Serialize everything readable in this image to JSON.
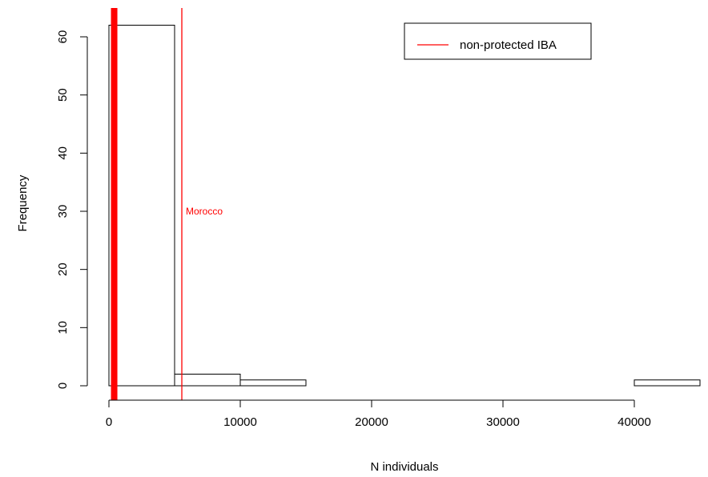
{
  "chart_data": {
    "type": "bar",
    "subtype": "histogram",
    "xlabel": "N individuals",
    "ylabel": "Frequency",
    "xlim": [
      0,
      45000
    ],
    "ylim": [
      0,
      62
    ],
    "x_ticks": [
      0,
      10000,
      20000,
      30000,
      40000
    ],
    "x_tick_labels": [
      "0",
      "10000",
      "20000",
      "30000",
      "40000"
    ],
    "y_ticks": [
      0,
      10,
      20,
      30,
      40,
      50,
      60
    ],
    "y_tick_labels": [
      "0",
      "10",
      "20",
      "30",
      "40",
      "50",
      "60"
    ],
    "bins": [
      {
        "start": 0,
        "end": 5000,
        "count": 62
      },
      {
        "start": 5000,
        "end": 10000,
        "count": 2
      },
      {
        "start": 10000,
        "end": 15000,
        "count": 1
      },
      {
        "start": 15000,
        "end": 20000,
        "count": 0
      },
      {
        "start": 20000,
        "end": 25000,
        "count": 0
      },
      {
        "start": 25000,
        "end": 30000,
        "count": 0
      },
      {
        "start": 30000,
        "end": 35000,
        "count": 0
      },
      {
        "start": 35000,
        "end": 40000,
        "count": 0
      },
      {
        "start": 40000,
        "end": 45000,
        "count": 1
      }
    ],
    "vertical_lines": [
      {
        "x": 400,
        "color": "#ff0000",
        "style": "thick"
      },
      {
        "x": 5550,
        "color": "#ff0000",
        "style": "thin",
        "label": "Morocco"
      }
    ],
    "legend": {
      "position": "top-right",
      "entries": [
        {
          "label": "non-protected IBA",
          "color": "#ff0000"
        }
      ]
    },
    "grid": false
  }
}
